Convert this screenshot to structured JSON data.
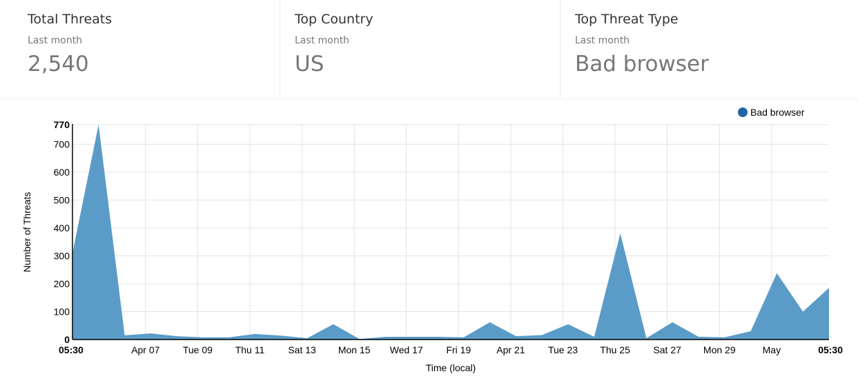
{
  "stats": [
    {
      "title": "Total Threats",
      "subtitle": "Last month",
      "value": "2,540"
    },
    {
      "title": "Top Country",
      "subtitle": "Last month",
      "value": "US"
    },
    {
      "title": "Top Threat Type",
      "subtitle": "Last month",
      "value": "Bad browser"
    }
  ],
  "chart_data": {
    "type": "area",
    "xlabel": "Time (local)",
    "ylabel": "Number of Threats",
    "ylim": [
      0,
      770
    ],
    "yticks": [
      0,
      100,
      200,
      300,
      400,
      500,
      600,
      700,
      770
    ],
    "ytick_labels": [
      "0",
      "100",
      "200",
      "300",
      "400",
      "500",
      "600",
      "700",
      "770"
    ],
    "xticks": [
      {
        "label": "05:30",
        "pos": 0,
        "bold": true
      },
      {
        "label": "Apr 07",
        "pos": 2.8
      },
      {
        "label": "Tue 09",
        "pos": 4.8
      },
      {
        "label": "Thu 11",
        "pos": 6.8
      },
      {
        "label": "Sat 13",
        "pos": 8.8
      },
      {
        "label": "Mon 15",
        "pos": 10.8
      },
      {
        "label": "Wed 17",
        "pos": 12.8
      },
      {
        "label": "Fri 19",
        "pos": 14.8
      },
      {
        "label": "Apr 21",
        "pos": 16.8
      },
      {
        "label": "Tue 23",
        "pos": 18.8
      },
      {
        "label": "Thu 25",
        "pos": 20.8
      },
      {
        "label": "Sat 27",
        "pos": 22.8
      },
      {
        "label": "Mon 29",
        "pos": 24.8
      },
      {
        "label": "May",
        "pos": 26.8
      },
      {
        "label": "05:30",
        "pos": 29,
        "bold": true
      }
    ],
    "grid": true,
    "legend_position": "top-right",
    "series": [
      {
        "name": "Bad browser",
        "color": "#5b9bc8",
        "marker_color": "#2167a4",
        "x": [
          0,
          1,
          2,
          3,
          4,
          5,
          6,
          7,
          8,
          9,
          10,
          11,
          12,
          13,
          14,
          15,
          16,
          17,
          18,
          19,
          20,
          21,
          22,
          23,
          24,
          25,
          26,
          27,
          28,
          29
        ],
        "values": [
          310,
          770,
          15,
          22,
          12,
          8,
          8,
          20,
          14,
          5,
          55,
          2,
          10,
          10,
          10,
          8,
          62,
          12,
          16,
          55,
          10,
          380,
          5,
          62,
          10,
          8,
          30,
          238,
          100,
          185
        ]
      }
    ]
  }
}
